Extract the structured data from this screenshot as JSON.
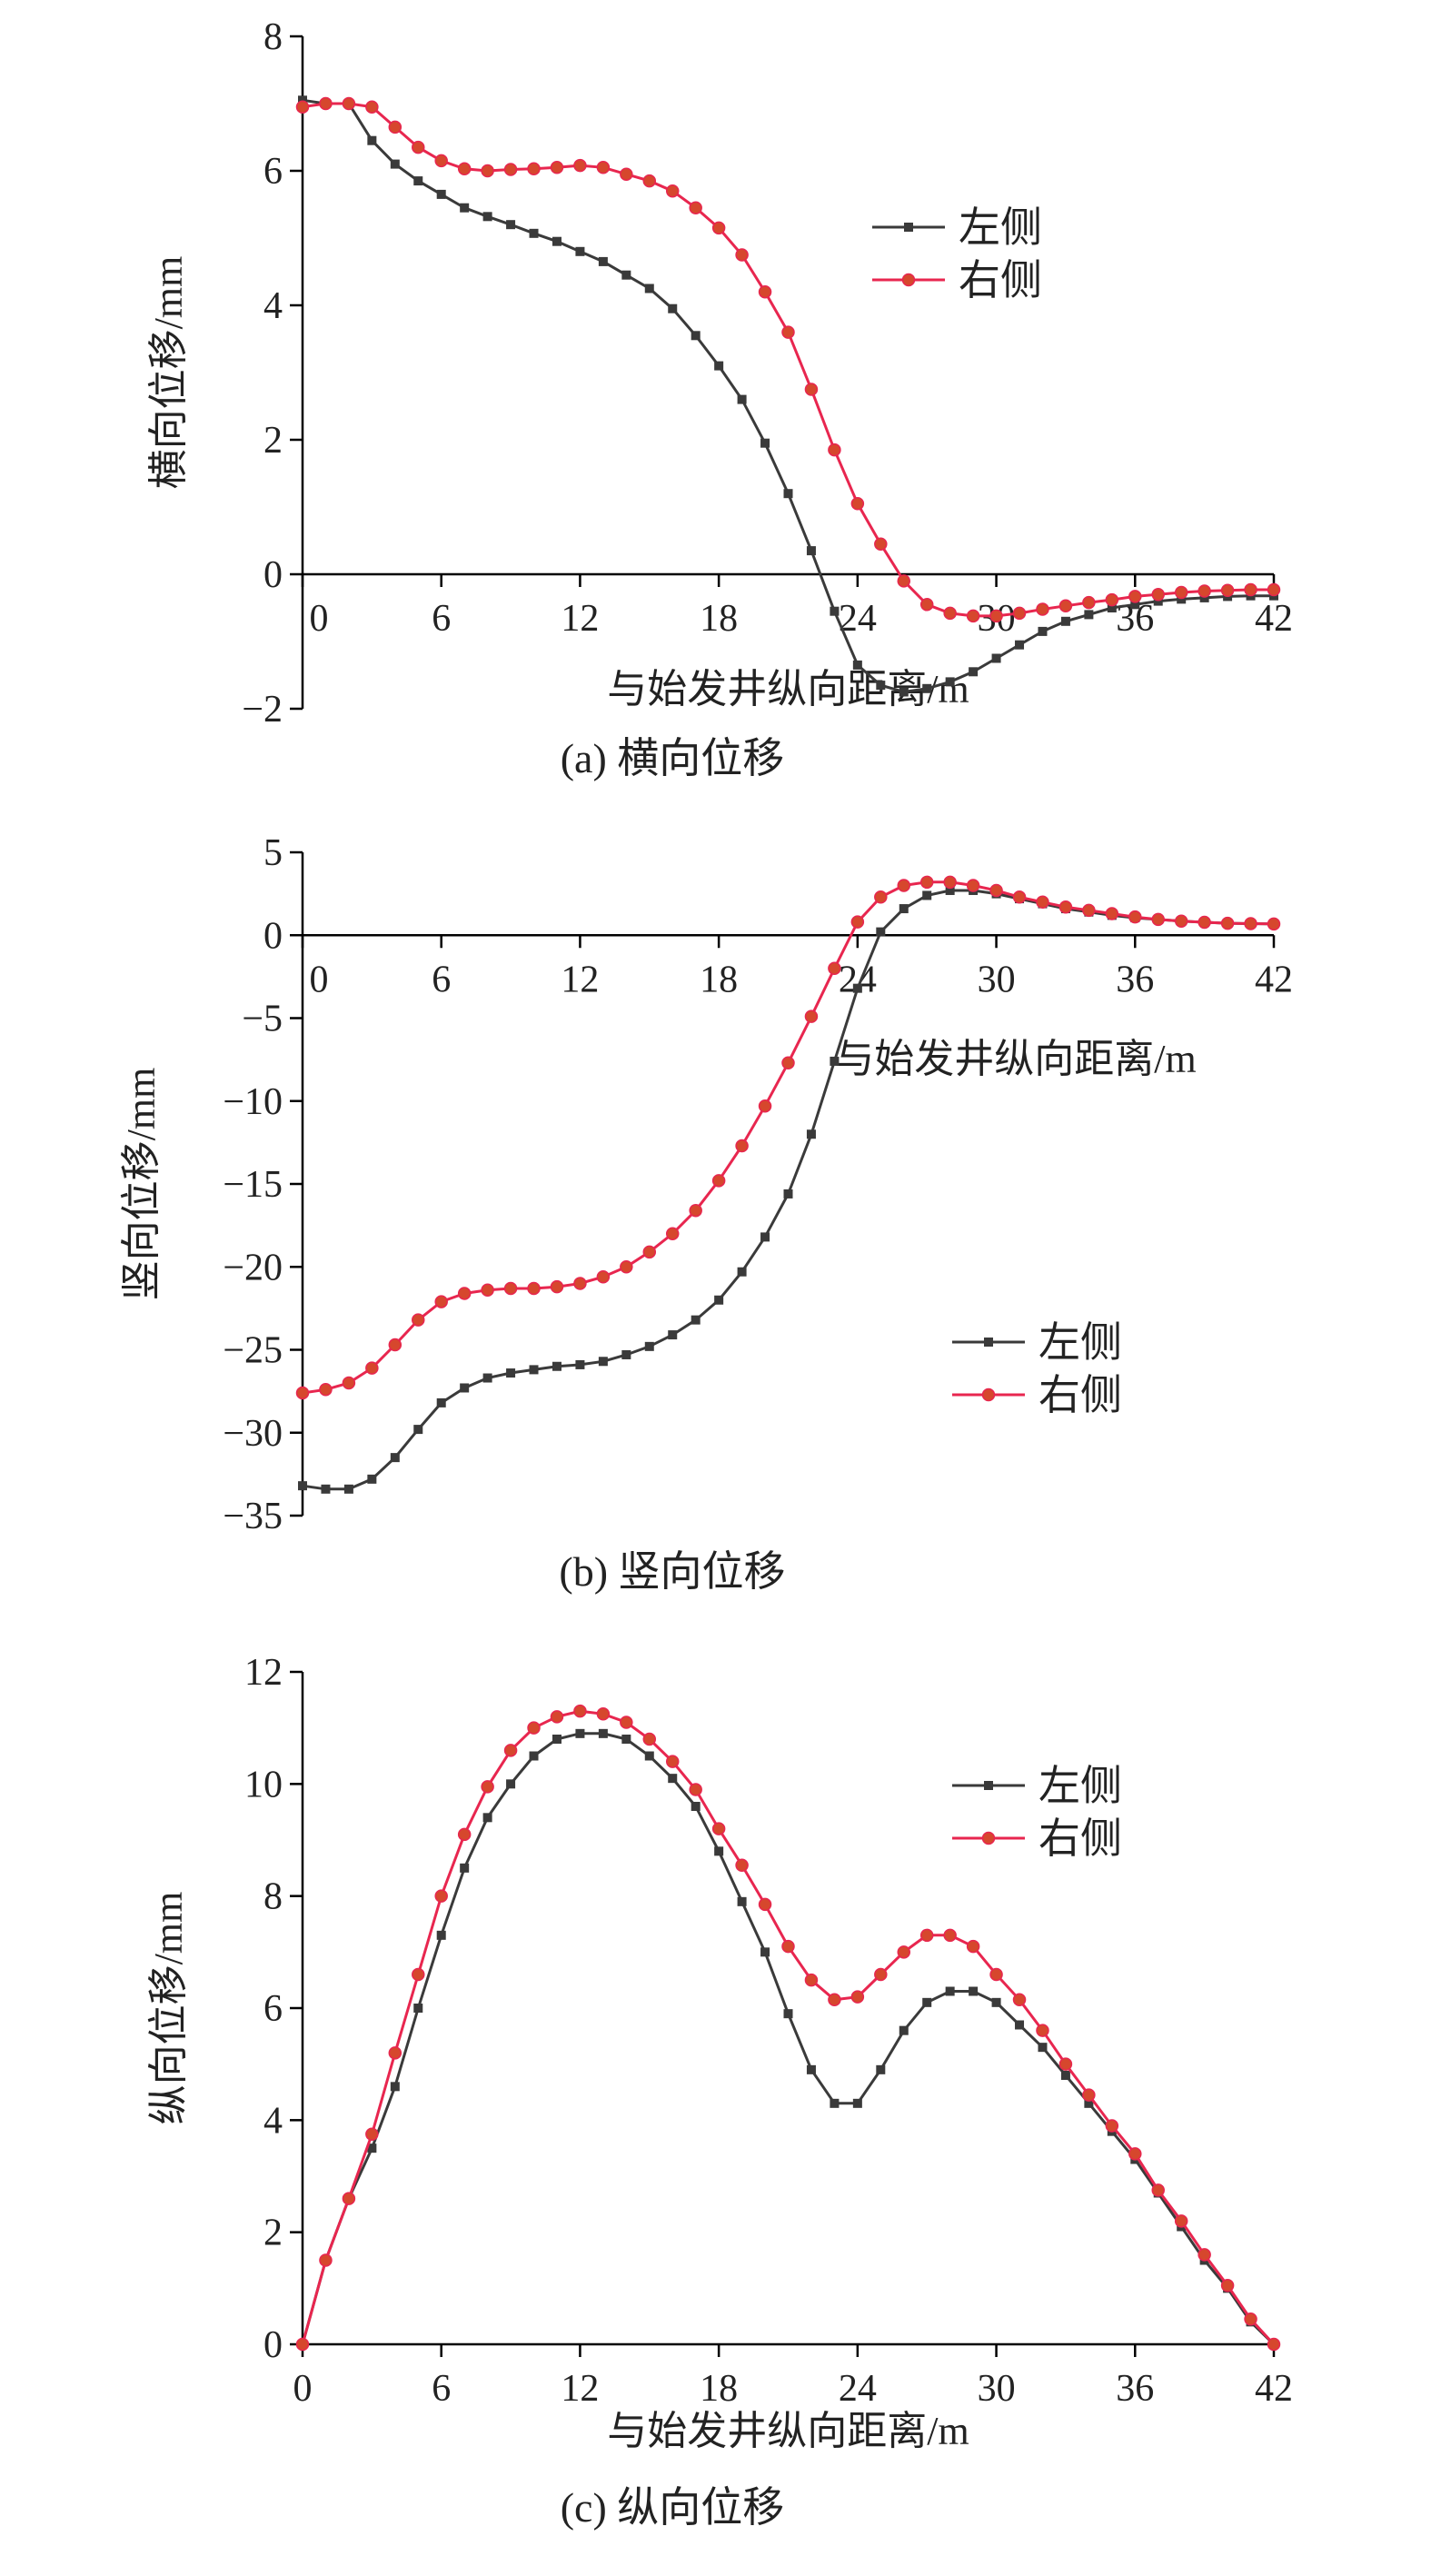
{
  "colors": {
    "left": "#3a3a3a",
    "right": "#e8264f",
    "right_marker_fill": "#d6472d",
    "axis": "#000000"
  },
  "chart_data": [
    {
      "type": "line",
      "caption": "(a) 横向位移",
      "xlabel": "与始发井纵向距离/m",
      "ylabel": "横向位移/mm",
      "xlim": [
        0,
        42
      ],
      "ylim": [
        -2,
        8
      ],
      "xticks": [
        0,
        6,
        12,
        18,
        24,
        30,
        36,
        42
      ],
      "yticks": [
        -2,
        0,
        2,
        4,
        6,
        8
      ],
      "grid": false,
      "legend": "upper-right",
      "series": [
        {
          "name": "左侧",
          "marker": "square",
          "x": [
            0,
            1,
            2,
            3,
            4,
            5,
            6,
            7,
            8,
            9,
            10,
            11,
            12,
            13,
            14,
            15,
            16,
            17,
            18,
            19,
            20,
            21,
            22,
            23,
            24,
            25,
            26,
            27,
            28,
            29,
            30,
            31,
            32,
            33,
            34,
            35,
            36,
            37,
            38,
            39,
            40,
            41,
            42
          ],
          "y": [
            7.05,
            7.0,
            7.0,
            6.45,
            6.1,
            5.85,
            5.65,
            5.45,
            5.32,
            5.2,
            5.07,
            4.95,
            4.8,
            4.65,
            4.45,
            4.25,
            3.95,
            3.55,
            3.1,
            2.6,
            1.95,
            1.2,
            0.35,
            -0.55,
            -1.35,
            -1.65,
            -1.75,
            -1.7,
            -1.6,
            -1.45,
            -1.25,
            -1.05,
            -0.85,
            -0.7,
            -0.6,
            -0.5,
            -0.45,
            -0.4,
            -0.37,
            -0.35,
            -0.33,
            -0.32,
            -0.32
          ]
        },
        {
          "name": "右侧",
          "marker": "circle",
          "x": [
            0,
            1,
            2,
            3,
            4,
            5,
            6,
            7,
            8,
            9,
            10,
            11,
            12,
            13,
            14,
            15,
            16,
            17,
            18,
            19,
            20,
            21,
            22,
            23,
            24,
            25,
            26,
            27,
            28,
            29,
            30,
            31,
            32,
            33,
            34,
            35,
            36,
            37,
            38,
            39,
            40,
            41,
            42
          ],
          "y": [
            6.95,
            7.0,
            7.0,
            6.95,
            6.65,
            6.35,
            6.15,
            6.03,
            6.0,
            6.02,
            6.03,
            6.05,
            6.08,
            6.05,
            5.95,
            5.85,
            5.7,
            5.45,
            5.15,
            4.75,
            4.2,
            3.6,
            2.75,
            1.85,
            1.05,
            0.45,
            -0.1,
            -0.45,
            -0.58,
            -0.62,
            -0.62,
            -0.58,
            -0.52,
            -0.47,
            -0.42,
            -0.38,
            -0.33,
            -0.3,
            -0.27,
            -0.25,
            -0.24,
            -0.23,
            -0.23
          ]
        }
      ]
    },
    {
      "type": "line",
      "caption": "(b) 竖向位移",
      "xlabel": "与始发井纵向距离/m",
      "ylabel": "竖向位移/mm",
      "xlim": [
        0,
        42
      ],
      "ylim": [
        -35,
        5
      ],
      "xticks": [
        0,
        6,
        12,
        18,
        24,
        30,
        36,
        42
      ],
      "yticks": [
        -35,
        -30,
        -25,
        -20,
        -15,
        -10,
        -5,
        0,
        5
      ],
      "grid": false,
      "legend": "lower-right",
      "series": [
        {
          "name": "左侧",
          "marker": "square",
          "x": [
            0,
            1,
            2,
            3,
            4,
            5,
            6,
            7,
            8,
            9,
            10,
            11,
            12,
            13,
            14,
            15,
            16,
            17,
            18,
            19,
            20,
            21,
            22,
            23,
            24,
            25,
            26,
            27,
            28,
            29,
            30,
            31,
            32,
            33,
            34,
            35,
            36,
            37,
            38,
            39,
            40,
            41,
            42
          ],
          "y": [
            -33.2,
            -33.4,
            -33.4,
            -32.8,
            -31.5,
            -29.8,
            -28.2,
            -27.3,
            -26.7,
            -26.4,
            -26.2,
            -26.0,
            -25.9,
            -25.7,
            -25.3,
            -24.8,
            -24.1,
            -23.2,
            -22.0,
            -20.3,
            -18.2,
            -15.6,
            -12.0,
            -7.6,
            -3.2,
            0.2,
            1.6,
            2.4,
            2.7,
            2.7,
            2.5,
            2.2,
            1.9,
            1.6,
            1.4,
            1.2,
            1.05,
            0.95,
            0.85,
            0.78,
            0.72,
            0.7,
            0.68
          ]
        },
        {
          "name": "右侧",
          "marker": "circle",
          "x": [
            0,
            1,
            2,
            3,
            4,
            5,
            6,
            7,
            8,
            9,
            10,
            11,
            12,
            13,
            14,
            15,
            16,
            17,
            18,
            19,
            20,
            21,
            22,
            23,
            24,
            25,
            26,
            27,
            28,
            29,
            30,
            31,
            32,
            33,
            34,
            35,
            36,
            37,
            38,
            39,
            40,
            41,
            42
          ],
          "y": [
            -27.6,
            -27.4,
            -27.0,
            -26.1,
            -24.7,
            -23.2,
            -22.1,
            -21.6,
            -21.4,
            -21.3,
            -21.3,
            -21.2,
            -21.0,
            -20.6,
            -20.0,
            -19.1,
            -18.0,
            -16.6,
            -14.8,
            -12.7,
            -10.3,
            -7.7,
            -4.9,
            -2.0,
            0.8,
            2.3,
            3.0,
            3.2,
            3.2,
            3.0,
            2.7,
            2.3,
            2.0,
            1.7,
            1.5,
            1.3,
            1.1,
            0.95,
            0.85,
            0.78,
            0.72,
            0.7,
            0.68
          ]
        }
      ]
    },
    {
      "type": "line",
      "caption": "(c) 纵向位移",
      "xlabel": "与始发井纵向距离/m",
      "ylabel": "纵向位移/mm",
      "xlim": [
        0,
        42
      ],
      "ylim": [
        0,
        12
      ],
      "xticks": [
        0,
        6,
        12,
        18,
        24,
        30,
        36,
        42
      ],
      "yticks": [
        0,
        2,
        4,
        6,
        8,
        10,
        12
      ],
      "grid": false,
      "legend": "upper-right",
      "series": [
        {
          "name": "左侧",
          "marker": "square",
          "x": [
            0,
            1,
            2,
            3,
            4,
            5,
            6,
            7,
            8,
            9,
            10,
            11,
            12,
            13,
            14,
            15,
            16,
            17,
            18,
            19,
            20,
            21,
            22,
            23,
            24,
            25,
            26,
            27,
            28,
            29,
            30,
            31,
            32,
            33,
            34,
            35,
            36,
            37,
            38,
            39,
            40,
            41,
            42
          ],
          "y": [
            0,
            1.5,
            2.6,
            3.5,
            4.6,
            6.0,
            7.3,
            8.5,
            9.4,
            10.0,
            10.5,
            10.8,
            10.9,
            10.9,
            10.8,
            10.5,
            10.1,
            9.6,
            8.8,
            7.9,
            7.0,
            5.9,
            4.9,
            4.3,
            4.3,
            4.9,
            5.6,
            6.1,
            6.3,
            6.3,
            6.1,
            5.7,
            5.3,
            4.8,
            4.3,
            3.8,
            3.3,
            2.7,
            2.1,
            1.5,
            1.0,
            0.4,
            0.0
          ]
        },
        {
          "name": "右侧",
          "marker": "circle",
          "x": [
            0,
            1,
            2,
            3,
            4,
            5,
            6,
            7,
            8,
            9,
            10,
            11,
            12,
            13,
            14,
            15,
            16,
            17,
            18,
            19,
            20,
            21,
            22,
            23,
            24,
            25,
            26,
            27,
            28,
            29,
            30,
            31,
            32,
            33,
            34,
            35,
            36,
            37,
            38,
            39,
            40,
            41,
            42
          ],
          "y": [
            0,
            1.5,
            2.6,
            3.75,
            5.2,
            6.6,
            8.0,
            9.1,
            9.95,
            10.6,
            11.0,
            11.2,
            11.3,
            11.25,
            11.1,
            10.8,
            10.4,
            9.9,
            9.2,
            8.55,
            7.85,
            7.1,
            6.5,
            6.15,
            6.2,
            6.6,
            7.0,
            7.3,
            7.3,
            7.1,
            6.6,
            6.15,
            5.6,
            5.0,
            4.45,
            3.9,
            3.4,
            2.75,
            2.2,
            1.6,
            1.05,
            0.45,
            0.0
          ]
        }
      ]
    }
  ]
}
